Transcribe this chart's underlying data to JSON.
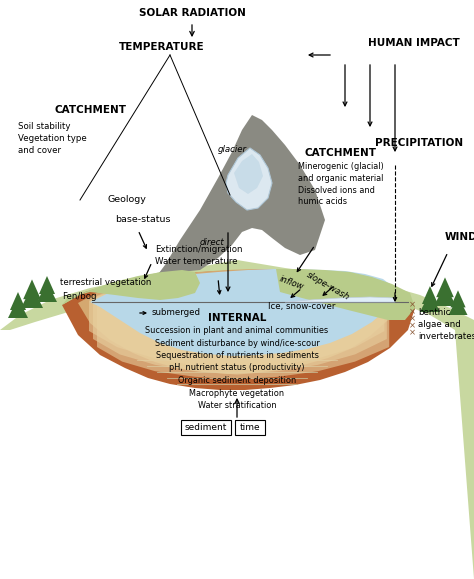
{
  "bg_color": "#ffffff",
  "mountain_color": "#8a8a82",
  "land_color": "#c8d8a0",
  "land_color2": "#b8cc8a",
  "lake_color": "#b8d8e8",
  "sediment_brown": "#b86030",
  "sediment_tan": "#d4a870",
  "sediment_stripe": "#e8d0a0",
  "glacier_color": "#dce8f0",
  "glacier_color2": "#c8dce8",
  "tree_color": "#3a7030",
  "ice_color": "#e0eef8",
  "labels": {
    "solar_radiation": "SOLAR RADIATION",
    "temperature": "TEMPERATURE",
    "human_impact": "HUMAN IMPACT",
    "catchment_left": "CATCHMENT",
    "soil_stability": "Soil stability\nVegetation type\nand cover",
    "geology": "Geology",
    "base_status": "base-status",
    "extinction": "Extinction/migration\nWater temperature",
    "terrestrial": "terrestrial vegetation",
    "fen_bog": "Fen/bog",
    "glacier": "glacier",
    "direct": "direct",
    "catchment_right": "CATCHMENT",
    "catchment_right_text": "Minerogenic (glacial)\nand organic material\nDissolved ions and\nhumic acids",
    "precipitation": "PRECIPITATION",
    "wind": "WIND",
    "inflow": "inflow",
    "slope_wash": "slope-wash",
    "ice_snow": "Ice, snow-cover",
    "submerged": "submerged",
    "benthic": "benthic\nalgae and\ninvertebrates",
    "internal": "INTERNAL",
    "internal_text": "Succession in plant and animal communities\nSediment disturbance by wind/ice-scour\nSequestration of nutrients in sediments\npH, nutrient status (productivity)\nOrganic sediment deposition\nMacrophyte vegetation\nWater stratification",
    "sediment": "sediment",
    "time": "time"
  }
}
